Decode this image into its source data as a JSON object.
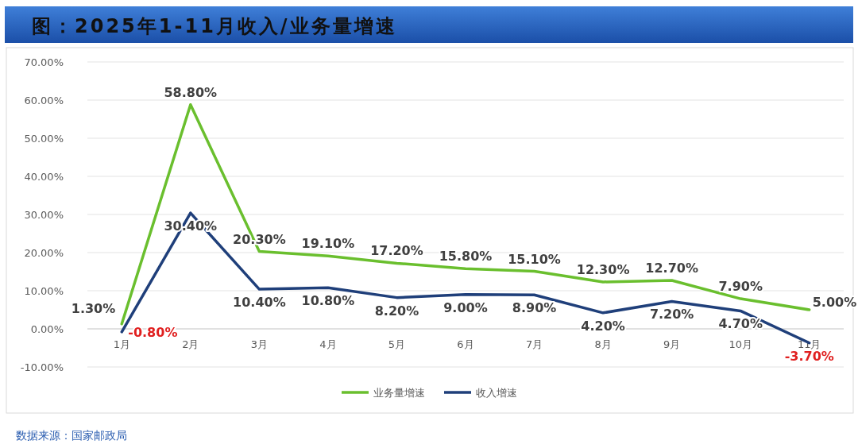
{
  "chart_data": {
    "type": "line",
    "title": "图：2025年1-11月收入/业务量增速",
    "categories": [
      "1月",
      "2月",
      "3月",
      "4月",
      "5月",
      "6月",
      "7月",
      "8月",
      "9月",
      "10月",
      "11月"
    ],
    "series": [
      {
        "name": "业务量增速",
        "color": "#6abf2e",
        "values": [
          1.3,
          58.8,
          20.3,
          19.1,
          17.2,
          15.8,
          15.1,
          12.3,
          12.7,
          7.9,
          5.0
        ],
        "value_labels": [
          "1.30%",
          "58.80%",
          "20.30%",
          "19.10%",
          "17.20%",
          "15.80%",
          "15.10%",
          "12.30%",
          "12.70%",
          "7.90%",
          "5.00%"
        ]
      },
      {
        "name": "收入增速",
        "color": "#1f3f7a",
        "values": [
          -0.8,
          30.4,
          10.4,
          10.8,
          8.2,
          9.0,
          8.9,
          4.2,
          7.2,
          4.7,
          -3.7
        ],
        "value_labels": [
          "-0.80%",
          "30.40%",
          "10.40%",
          "10.80%",
          "8.20%",
          "9.00%",
          "8.90%",
          "4.20%",
          "7.20%",
          "4.70%",
          "-3.70%"
        ]
      }
    ],
    "ylim": [
      -10,
      70
    ],
    "yticks": [
      {
        "value": -10,
        "label": "-10.00%"
      },
      {
        "value": 0,
        "label": "0.00%"
      },
      {
        "value": 10,
        "label": "10.00%"
      },
      {
        "value": 20,
        "label": "20.00%"
      },
      {
        "value": 30,
        "label": "30.00%"
      },
      {
        "value": 40,
        "label": "40.00%"
      },
      {
        "value": 50,
        "label": "50.00%"
      },
      {
        "value": 60,
        "label": "60.00%"
      },
      {
        "value": 70,
        "label": "70.00%"
      }
    ],
    "grid": "y",
    "legend": "bottom",
    "annotations": [
      "数据来源：国家邮政局"
    ]
  }
}
